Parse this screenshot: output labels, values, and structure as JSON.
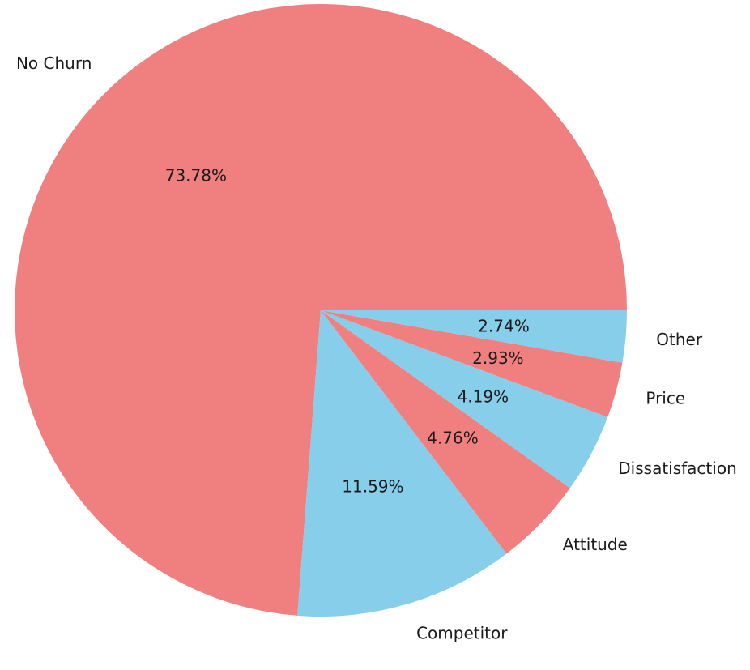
{
  "chart_data": {
    "type": "pie",
    "start_angle_deg": 0,
    "direction": "counterclockwise",
    "colors": [
      "#f08080",
      "#87ceeb"
    ],
    "slices": [
      {
        "label": "No Churn",
        "value": 73.78,
        "pct_text": "73.78%",
        "color": "#f08080"
      },
      {
        "label": "Competitor",
        "value": 11.59,
        "pct_text": "11.59%",
        "color": "#87ceeb"
      },
      {
        "label": "Attitude",
        "value": 4.76,
        "pct_text": "4.76%",
        "color": "#f08080"
      },
      {
        "label": "Dissatisfaction",
        "value": 4.19,
        "pct_text": "4.19%",
        "color": "#87ceeb"
      },
      {
        "label": "Price",
        "value": 2.93,
        "pct_text": "2.93%",
        "color": "#f08080"
      },
      {
        "label": "Other",
        "value": 2.74,
        "pct_text": "2.74%",
        "color": "#87ceeb"
      }
    ]
  }
}
